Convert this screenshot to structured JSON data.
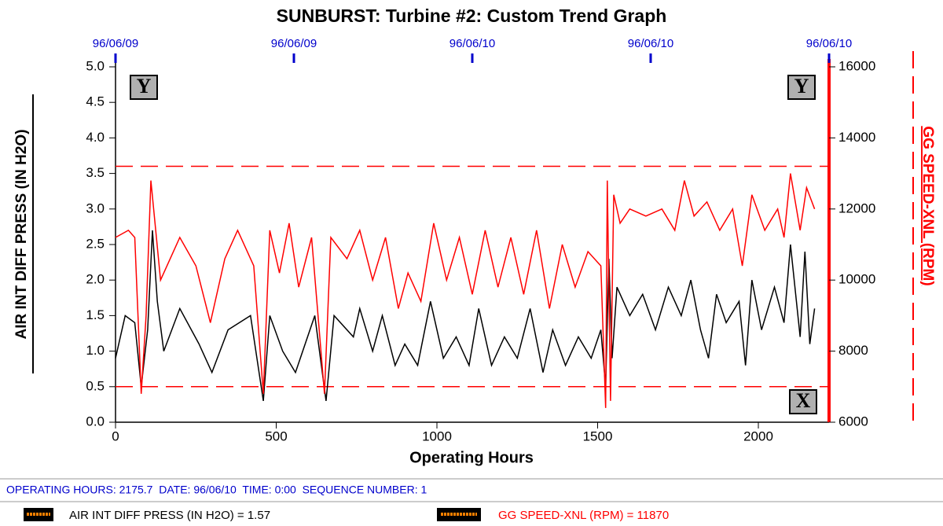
{
  "chart_data": {
    "type": "line",
    "title": "SUNBURST: Turbine #2: Custom Trend Graph",
    "xlabel": "Operating Hours",
    "ylabel": "AIR INT DIFF PRESS (IN H2O)",
    "y2label": "GG SPEED-XNL (RPM)",
    "xlim": [
      0,
      2220
    ],
    "xticks": [
      0,
      500,
      1000,
      1500,
      2000
    ],
    "x2ticks": [
      {
        "value": 0,
        "label": "96/06/09"
      },
      {
        "value": 555,
        "label": "96/06/09"
      },
      {
        "value": 1110,
        "label": "96/06/10"
      },
      {
        "value": 1665,
        "label": "96/06/10"
      },
      {
        "value": 2220,
        "label": "96/06/10"
      }
    ],
    "ylim": [
      0,
      5
    ],
    "yticks": [
      {
        "value": 0,
        "label": "0.0"
      },
      0.5,
      {
        "value": 1,
        "label": "1.0"
      },
      1.5,
      {
        "value": 2,
        "label": "2.0"
      },
      2.5,
      {
        "value": 3,
        "label": "3.0"
      },
      3.5,
      {
        "value": 4,
        "label": "4.0"
      },
      4.5,
      {
        "value": 5,
        "label": "5.0"
      }
    ],
    "y2lim": [
      6000,
      16000
    ],
    "y2ticks": [
      6000,
      8000,
      10000,
      12000,
      14000,
      16000
    ],
    "y2_limits": [
      7000,
      13200
    ],
    "limit_color": "#ff0000",
    "series": [
      {
        "name": "AIR INT DIFF PRESS (IN H2O)",
        "color": "#000000",
        "x": [
          0,
          30,
          60,
          80,
          100,
          115,
          130,
          150,
          200,
          260,
          300,
          350,
          420,
          460,
          480,
          520,
          560,
          620,
          655,
          680,
          740,
          760,
          800,
          830,
          870,
          900,
          940,
          980,
          1020,
          1060,
          1100,
          1130,
          1170,
          1210,
          1250,
          1290,
          1330,
          1360,
          1400,
          1440,
          1480,
          1510,
          1525,
          1535,
          1545,
          1560,
          1600,
          1640,
          1680,
          1720,
          1760,
          1790,
          1820,
          1845,
          1870,
          1900,
          1940,
          1960,
          1980,
          2010,
          2050,
          2080,
          2100,
          2130,
          2145,
          2160,
          2175
        ],
        "values": [
          0.9,
          1.5,
          1.4,
          0.5,
          1.3,
          2.7,
          1.7,
          1.0,
          1.6,
          1.1,
          0.7,
          1.3,
          1.5,
          0.3,
          1.5,
          1.0,
          0.7,
          1.5,
          0.3,
          1.5,
          1.2,
          1.6,
          1.0,
          1.5,
          0.8,
          1.1,
          0.8,
          1.7,
          0.9,
          1.2,
          0.8,
          1.6,
          0.8,
          1.2,
          0.9,
          1.6,
          0.7,
          1.3,
          0.8,
          1.2,
          0.9,
          1.3,
          0.5,
          2.3,
          0.9,
          1.9,
          1.5,
          1.8,
          1.3,
          1.9,
          1.5,
          2.0,
          1.3,
          0.9,
          1.8,
          1.4,
          1.7,
          0.8,
          2.0,
          1.3,
          1.9,
          1.4,
          2.5,
          1.2,
          2.4,
          1.1,
          1.6
        ]
      },
      {
        "name": "GG SPEED-XNL (RPM)",
        "color": "#ff0000",
        "axis": "y2",
        "x": [
          0,
          40,
          60,
          80,
          95,
          110,
          140,
          200,
          250,
          295,
          340,
          380,
          430,
          460,
          480,
          510,
          540,
          570,
          610,
          650,
          670,
          720,
          760,
          800,
          840,
          880,
          910,
          950,
          990,
          1030,
          1070,
          1110,
          1150,
          1190,
          1230,
          1270,
          1310,
          1350,
          1390,
          1430,
          1470,
          1510,
          1525,
          1530,
          1540,
          1550,
          1570,
          1600,
          1650,
          1700,
          1740,
          1770,
          1800,
          1840,
          1880,
          1920,
          1950,
          1980,
          2020,
          2060,
          2080,
          2100,
          2130,
          2150,
          2175
        ],
        "values": [
          11200,
          11400,
          11200,
          6800,
          9000,
          12800,
          10000,
          11200,
          10400,
          8800,
          10600,
          11400,
          10400,
          6800,
          11400,
          10200,
          11600,
          9800,
          11200,
          6800,
          11200,
          10600,
          11400,
          10000,
          11200,
          9200,
          10200,
          9400,
          11600,
          10000,
          11200,
          9600,
          11400,
          9800,
          11200,
          9600,
          11400,
          9200,
          11000,
          9800,
          10800,
          10400,
          6400,
          12800,
          6600,
          12400,
          11600,
          12000,
          11800,
          12000,
          11400,
          12800,
          11800,
          12200,
          11400,
          12000,
          10400,
          12400,
          11400,
          12000,
          11200,
          13000,
          11400,
          12600,
          12000
        ]
      }
    ]
  },
  "ui": {
    "buttons": [
      "Y",
      "Y",
      "X"
    ],
    "status_bar": "OPERATING HOURS: 2175.7  DATE: 96/06/10  TIME: 0:00  SEQUENCE NUMBER: 1",
    "legend_entries": [
      "AIR INT DIFF PRESS (IN H2O) = 1.57",
      "GG SPEED-XNL (RPM) = 11870"
    ]
  }
}
